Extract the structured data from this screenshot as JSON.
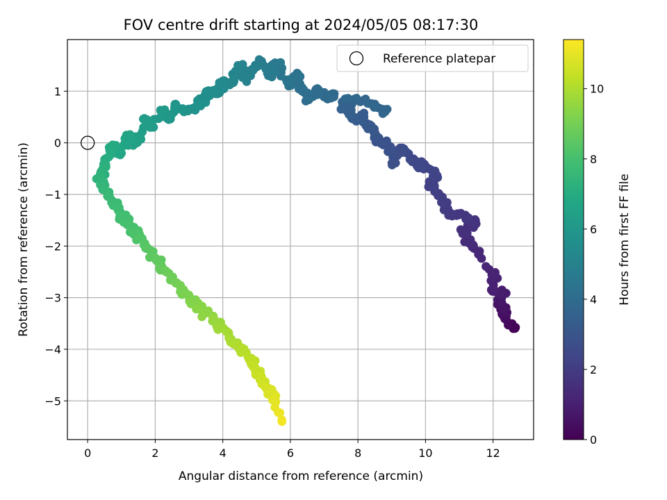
{
  "chart_data": {
    "type": "scatter",
    "title": "FOV centre drift starting at 2024/05/05 08:17:30",
    "xlabel": "Angular distance from reference (arcmin)",
    "ylabel": "Rotation from reference (arcmin)",
    "colorbar_label": "Hours from first FF file",
    "xlim": [
      -0.6,
      13.2
    ],
    "ylim": [
      -5.75,
      2.0
    ],
    "clim": [
      0,
      11.4
    ],
    "colormap": "viridis",
    "grid": true,
    "legend_placement": "top-right",
    "x_ticks": [
      0,
      2,
      4,
      6,
      8,
      10,
      12
    ],
    "x_tick_labels": [
      "0",
      "2",
      "4",
      "6",
      "8",
      "10",
      "12"
    ],
    "y_ticks": [
      -5,
      -4,
      -3,
      -2,
      -1,
      0,
      1
    ],
    "y_tick_labels": [
      "−5",
      "−4",
      "−3",
      "−2",
      "−1",
      "0",
      "1"
    ],
    "c_ticks": [
      0,
      2,
      4,
      6,
      8,
      10
    ],
    "c_tick_labels": [
      "0",
      "2",
      "4",
      "6",
      "8",
      "10"
    ],
    "reference": {
      "label": "Reference platepar",
      "x": 0.0,
      "y": 0.0
    },
    "points": [
      {
        "x": 12.6,
        "y": -3.6,
        "c": 0.0
      },
      {
        "x": 12.5,
        "y": -3.5,
        "c": 0.2
      },
      {
        "x": 12.3,
        "y": -3.35,
        "c": 0.4
      },
      {
        "x": 12.35,
        "y": -3.22,
        "c": 0.55
      },
      {
        "x": 12.2,
        "y": -3.05,
        "c": 0.7
      },
      {
        "x": 12.3,
        "y": -2.9,
        "c": 0.85
      },
      {
        "x": 11.95,
        "y": -2.85,
        "c": 1.0
      },
      {
        "x": 12.0,
        "y": -2.55,
        "c": 1.1
      },
      {
        "x": 11.6,
        "y": -2.1,
        "c": 1.25
      },
      {
        "x": 11.3,
        "y": -1.95,
        "c": 1.4
      },
      {
        "x": 11.1,
        "y": -1.72,
        "c": 1.55
      },
      {
        "x": 11.5,
        "y": -1.57,
        "c": 1.65
      },
      {
        "x": 11.2,
        "y": -1.45,
        "c": 1.75
      },
      {
        "x": 10.85,
        "y": -1.4,
        "c": 1.85
      },
      {
        "x": 10.55,
        "y": -1.3,
        "c": 1.95
      },
      {
        "x": 10.5,
        "y": -1.05,
        "c": 2.05
      },
      {
        "x": 10.2,
        "y": -0.85,
        "c": 2.15
      },
      {
        "x": 10.35,
        "y": -0.65,
        "c": 2.25
      },
      {
        "x": 10.0,
        "y": -0.45,
        "c": 2.35
      },
      {
        "x": 9.75,
        "y": -0.45,
        "c": 2.45
      },
      {
        "x": 9.45,
        "y": -0.2,
        "c": 2.55
      },
      {
        "x": 9.25,
        "y": -0.1,
        "c": 2.65
      },
      {
        "x": 9.05,
        "y": -0.4,
        "c": 2.75
      },
      {
        "x": 8.9,
        "y": -0.05,
        "c": 2.85
      },
      {
        "x": 8.6,
        "y": 0.05,
        "c": 2.95
      },
      {
        "x": 8.5,
        "y": 0.2,
        "c": 3.05
      },
      {
        "x": 8.35,
        "y": 0.35,
        "c": 3.15
      },
      {
        "x": 8.15,
        "y": 0.5,
        "c": 3.25
      },
      {
        "x": 7.9,
        "y": 0.45,
        "c": 3.35
      },
      {
        "x": 7.7,
        "y": 0.62,
        "c": 3.45
      },
      {
        "x": 7.55,
        "y": 0.75,
        "c": 3.55
      },
      {
        "x": 7.9,
        "y": 0.85,
        "c": 3.62
      },
      {
        "x": 8.5,
        "y": 0.75,
        "c": 3.7
      },
      {
        "x": 8.8,
        "y": 0.6,
        "c": 3.78
      },
      {
        "x": 7.3,
        "y": 0.95,
        "c": 3.85
      },
      {
        "x": 7.1,
        "y": 0.85,
        "c": 3.92
      },
      {
        "x": 6.8,
        "y": 1.05,
        "c": 4.0
      },
      {
        "x": 6.55,
        "y": 0.85,
        "c": 4.08
      },
      {
        "x": 6.35,
        "y": 1.0,
        "c": 4.16
      },
      {
        "x": 6.1,
        "y": 1.25,
        "c": 4.24
      },
      {
        "x": 6.2,
        "y": 1.35,
        "c": 4.32
      },
      {
        "x": 5.95,
        "y": 1.1,
        "c": 4.4
      },
      {
        "x": 5.75,
        "y": 1.45,
        "c": 4.5
      },
      {
        "x": 5.55,
        "y": 1.55,
        "c": 4.6
      },
      {
        "x": 5.35,
        "y": 1.3,
        "c": 4.7
      },
      {
        "x": 5.15,
        "y": 1.58,
        "c": 4.8
      },
      {
        "x": 4.95,
        "y": 1.45,
        "c": 4.9
      },
      {
        "x": 4.7,
        "y": 1.25,
        "c": 5.0
      },
      {
        "x": 4.45,
        "y": 1.5,
        "c": 5.1
      },
      {
        "x": 4.25,
        "y": 1.15,
        "c": 5.2
      },
      {
        "x": 4.0,
        "y": 1.2,
        "c": 5.3
      },
      {
        "x": 3.85,
        "y": 0.95,
        "c": 5.4
      },
      {
        "x": 3.6,
        "y": 1.0,
        "c": 5.5
      },
      {
        "x": 3.4,
        "y": 0.8,
        "c": 5.6
      },
      {
        "x": 3.2,
        "y": 0.7,
        "c": 5.7
      },
      {
        "x": 2.85,
        "y": 0.6,
        "c": 5.8
      },
      {
        "x": 2.6,
        "y": 0.75,
        "c": 5.9
      },
      {
        "x": 2.4,
        "y": 0.45,
        "c": 6.0
      },
      {
        "x": 2.2,
        "y": 0.62,
        "c": 6.1
      },
      {
        "x": 1.95,
        "y": 0.3,
        "c": 6.2
      },
      {
        "x": 1.75,
        "y": 0.45,
        "c": 6.3
      },
      {
        "x": 1.55,
        "y": 0.1,
        "c": 6.4
      },
      {
        "x": 1.35,
        "y": -0.05,
        "c": 6.5
      },
      {
        "x": 1.15,
        "y": 0.15,
        "c": 6.6
      },
      {
        "x": 0.95,
        "y": -0.2,
        "c": 6.75
      },
      {
        "x": 0.75,
        "y": -0.1,
        "c": 6.9
      },
      {
        "x": 0.55,
        "y": -0.3,
        "c": 7.05
      },
      {
        "x": 0.45,
        "y": -0.5,
        "c": 7.2
      },
      {
        "x": 0.35,
        "y": -0.7,
        "c": 7.35
      },
      {
        "x": 0.5,
        "y": -0.9,
        "c": 7.5
      },
      {
        "x": 0.7,
        "y": -1.1,
        "c": 7.65
      },
      {
        "x": 0.9,
        "y": -1.3,
        "c": 7.8
      },
      {
        "x": 1.1,
        "y": -1.5,
        "c": 7.95
      },
      {
        "x": 1.35,
        "y": -1.7,
        "c": 8.1
      },
      {
        "x": 1.55,
        "y": -1.85,
        "c": 8.25
      },
      {
        "x": 1.75,
        "y": -2.05,
        "c": 8.4
      },
      {
        "x": 2.0,
        "y": -2.25,
        "c": 8.55
      },
      {
        "x": 2.25,
        "y": -2.45,
        "c": 8.7
      },
      {
        "x": 2.5,
        "y": -2.6,
        "c": 8.85
      },
      {
        "x": 2.75,
        "y": -2.8,
        "c": 9.0
      },
      {
        "x": 3.0,
        "y": -2.95,
        "c": 9.15
      },
      {
        "x": 3.25,
        "y": -3.15,
        "c": 9.3
      },
      {
        "x": 3.5,
        "y": -3.3,
        "c": 9.45
      },
      {
        "x": 3.75,
        "y": -3.45,
        "c": 9.6
      },
      {
        "x": 4.0,
        "y": -3.6,
        "c": 9.75
      },
      {
        "x": 4.25,
        "y": -3.8,
        "c": 9.9
      },
      {
        "x": 4.5,
        "y": -3.95,
        "c": 10.05
      },
      {
        "x": 4.75,
        "y": -4.15,
        "c": 10.2
      },
      {
        "x": 4.95,
        "y": -4.35,
        "c": 10.35
      },
      {
        "x": 5.15,
        "y": -4.55,
        "c": 10.5
      },
      {
        "x": 5.35,
        "y": -4.75,
        "c": 10.7
      },
      {
        "x": 5.55,
        "y": -4.95,
        "c": 10.9
      },
      {
        "x": 5.75,
        "y": -5.4,
        "c": 11.2
      }
    ]
  }
}
